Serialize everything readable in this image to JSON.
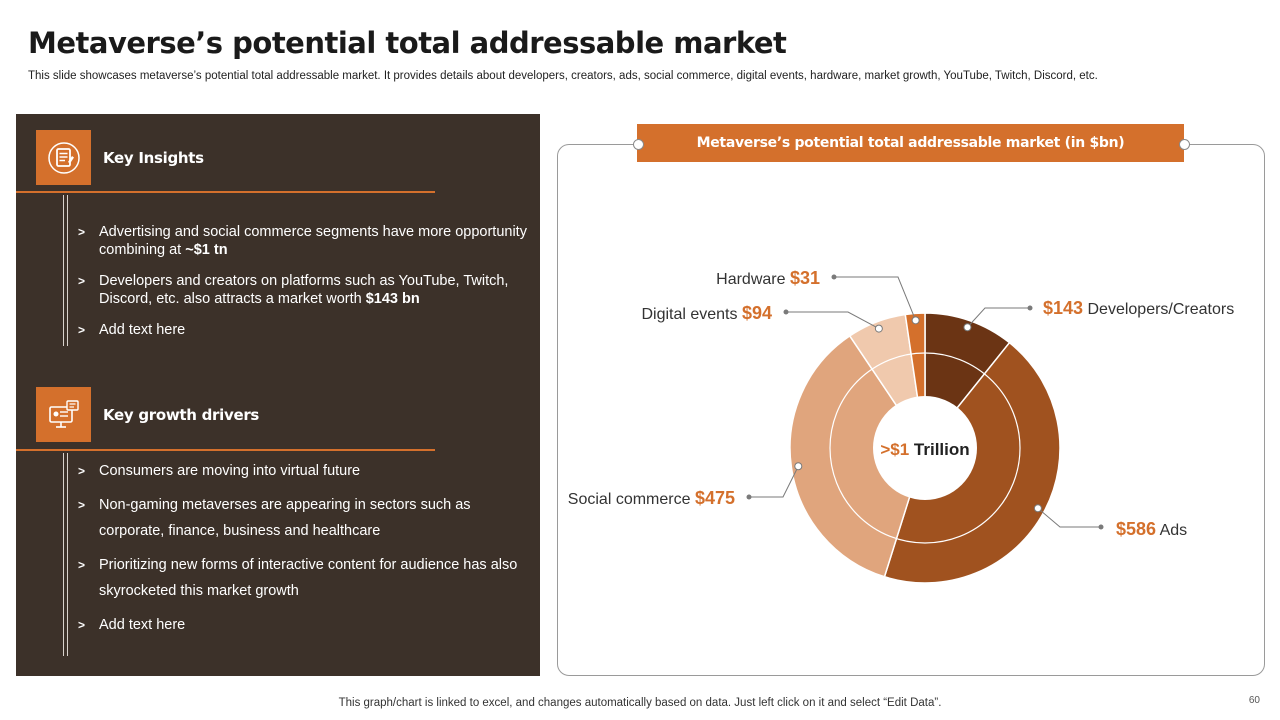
{
  "title": "Metaverse’s potential total addressable market",
  "subtitle": "This slide showcases metaverse’s potential total addressable market. It provides details about developers, creators, ads, social commerce, digital events, hardware, market growth, YouTube, Twitch, Discord, etc.",
  "left_panel": {
    "insights": {
      "title": "Key Insights",
      "icon": "document-icon",
      "items": [
        {
          "text": "Advertising and social commerce segments have more opportunity combining at ",
          "bold": "~$1 tn"
        },
        {
          "text": "Developers and creators on platforms such as YouTube, Twitch, Discord, etc. also attracts a market worth ",
          "bold": "$143 bn"
        },
        {
          "text": "Add text here",
          "bold": ""
        }
      ]
    },
    "drivers": {
      "title": "Key growth drivers",
      "icon": "virtual-screen-icon",
      "items": [
        {
          "text": "Consumers are moving into virtual future",
          "bold": ""
        },
        {
          "text": "Non-gaming metaverses are appearing in sectors such as corporate, finance, business and healthcare",
          "bold": ""
        },
        {
          "text": "Prioritizing new forms of interactive content for audience has also skyrocketed this market growth",
          "bold": ""
        },
        {
          "text": "Add text here",
          "bold": ""
        }
      ]
    }
  },
  "chart_data": {
    "type": "pie",
    "variant": "donut",
    "title": "Metaverse’s potential total addressable market (in $bn)",
    "center_label": {
      "prefix": ">$1",
      "text": "Trillion"
    },
    "unit": "$bn",
    "slices": [
      {
        "label": "Developers/Creators",
        "value": 143,
        "display": "$143",
        "color": "#6b3414"
      },
      {
        "label": "Ads",
        "value": 586,
        "display": "$586",
        "color": "#a0521f"
      },
      {
        "label": "Social commerce",
        "value": 475,
        "display": "$475",
        "color": "#e0a57d"
      },
      {
        "label": "Digital events",
        "value": 94,
        "display": "$94",
        "color": "#f0c9ad"
      },
      {
        "label": "Hardware",
        "value": 31,
        "display": "$31",
        "color": "#d4702c"
      }
    ]
  },
  "colors": {
    "accent": "#d4702c",
    "panel": "#3c3129",
    "value_text": "#d4702c"
  },
  "footer": "This graph/chart is linked to excel, and changes automatically based on data. Just left click on it and select “Edit Data”.",
  "page_number": "60"
}
